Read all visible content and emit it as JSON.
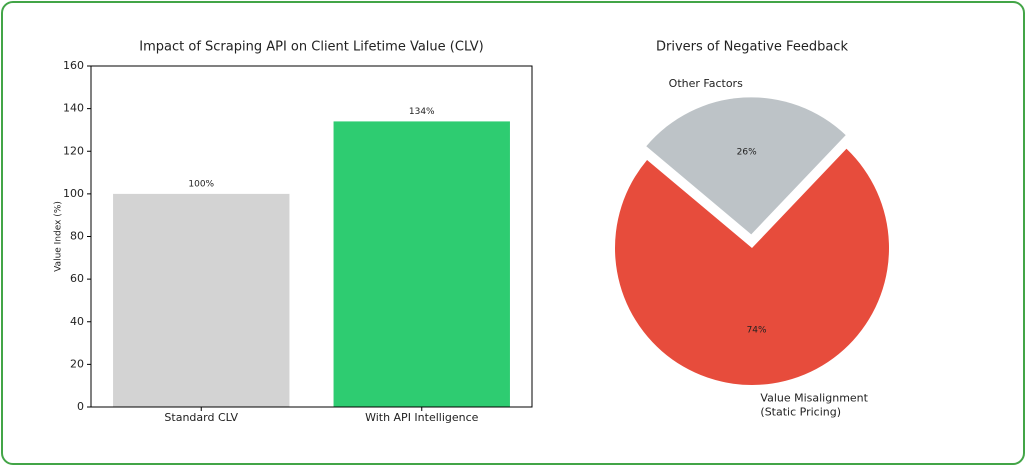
{
  "chart_data": [
    {
      "type": "bar",
      "title": "Impact of Scraping API on Client Lifetime Value (CLV)",
      "y_label": "Value Index (%)",
      "categories": [
        "Standard CLV",
        "With API Intelligence"
      ],
      "values": [
        100,
        134
      ],
      "value_labels": [
        "100%",
        "134%"
      ],
      "colors": [
        "#d3d3d3",
        "#2ecc71"
      ],
      "ylim": [
        0,
        160
      ],
      "yticks": [
        0,
        20,
        40,
        60,
        80,
        100,
        120,
        140,
        160
      ]
    },
    {
      "type": "pie",
      "title": "Drivers of Negative Feedback",
      "categories": [
        "Value Misalignment\n(Static Pricing)",
        "Other Factors"
      ],
      "values": [
        74,
        26
      ],
      "value_labels": [
        "74%",
        "26%"
      ],
      "colors": [
        "#e74c3c",
        "#bdc3c7"
      ]
    }
  ]
}
